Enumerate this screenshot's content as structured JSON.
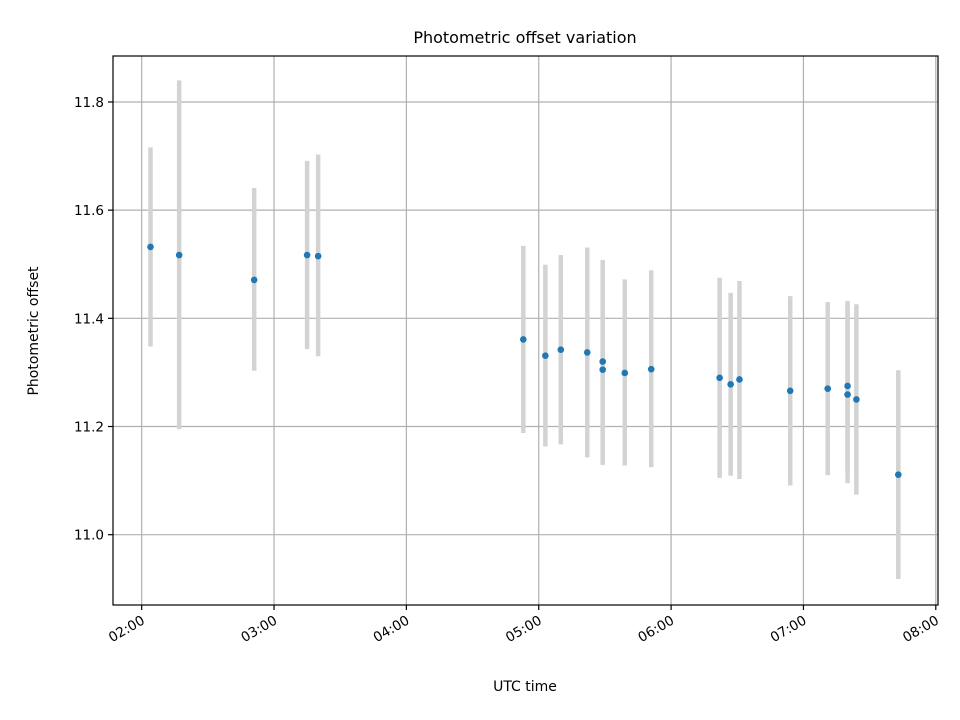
{
  "chart_data": {
    "type": "scatter",
    "title": "Photometric offset variation",
    "xlabel": "UTC time",
    "ylabel": "Photometric offset",
    "x_ticks": [
      "02:00",
      "03:00",
      "04:00",
      "05:00",
      "06:00",
      "07:00",
      "08:00"
    ],
    "y_ticks": [
      "11.0",
      "11.2",
      "11.4",
      "11.6",
      "11.8"
    ],
    "xlim": [
      "01:47",
      "08:01"
    ],
    "ylim": [
      10.87,
      11.885
    ],
    "grid": true,
    "point_color": "#1f77b4",
    "errorbar_color": "#d3d3d3",
    "series": [
      {
        "points": [
          {
            "x": "02:04",
            "y": 11.532,
            "ylow": 11.348,
            "yhigh": 11.716
          },
          {
            "x": "02:17",
            "y": 11.517,
            "ylow": 11.195,
            "yhigh": 11.84
          },
          {
            "x": "02:51",
            "y": 11.471,
            "ylow": 11.303,
            "yhigh": 11.641
          },
          {
            "x": "03:15",
            "y": 11.517,
            "ylow": 11.343,
            "yhigh": 11.691
          },
          {
            "x": "03:20",
            "y": 11.515,
            "ylow": 11.33,
            "yhigh": 11.703
          },
          {
            "x": "04:53",
            "y": 11.361,
            "ylow": 11.188,
            "yhigh": 11.534
          },
          {
            "x": "05:03",
            "y": 11.331,
            "ylow": 11.163,
            "yhigh": 11.499
          },
          {
            "x": "05:10",
            "y": 11.342,
            "ylow": 11.167,
            "yhigh": 11.517
          },
          {
            "x": "05:22",
            "y": 11.337,
            "ylow": 11.143,
            "yhigh": 11.531
          },
          {
            "x": "05:29",
            "y": 11.305,
            "ylow": 11.129,
            "yhigh": 11.482
          },
          {
            "x": "05:29",
            "y": 11.32,
            "ylow": 11.133,
            "yhigh": 11.508
          },
          {
            "x": "05:39",
            "y": 11.299,
            "ylow": 11.128,
            "yhigh": 11.472
          },
          {
            "x": "05:51",
            "y": 11.306,
            "ylow": 11.125,
            "yhigh": 11.489
          },
          {
            "x": "06:22",
            "y": 11.29,
            "ylow": 11.105,
            "yhigh": 11.475
          },
          {
            "x": "06:27",
            "y": 11.278,
            "ylow": 11.109,
            "yhigh": 11.447
          },
          {
            "x": "06:31",
            "y": 11.287,
            "ylow": 11.103,
            "yhigh": 11.469
          },
          {
            "x": "06:54",
            "y": 11.266,
            "ylow": 11.091,
            "yhigh": 11.441
          },
          {
            "x": "07:11",
            "y": 11.27,
            "ylow": 11.11,
            "yhigh": 11.43
          },
          {
            "x": "07:20",
            "y": 11.259,
            "ylow": 11.095,
            "yhigh": 11.425
          },
          {
            "x": "07:20",
            "y": 11.275,
            "ylow": 11.118,
            "yhigh": 11.432
          },
          {
            "x": "07:24",
            "y": 11.25,
            "ylow": 11.074,
            "yhigh": 11.426
          },
          {
            "x": "07:43",
            "y": 11.111,
            "ylow": 10.918,
            "yhigh": 11.304
          }
        ]
      }
    ]
  }
}
